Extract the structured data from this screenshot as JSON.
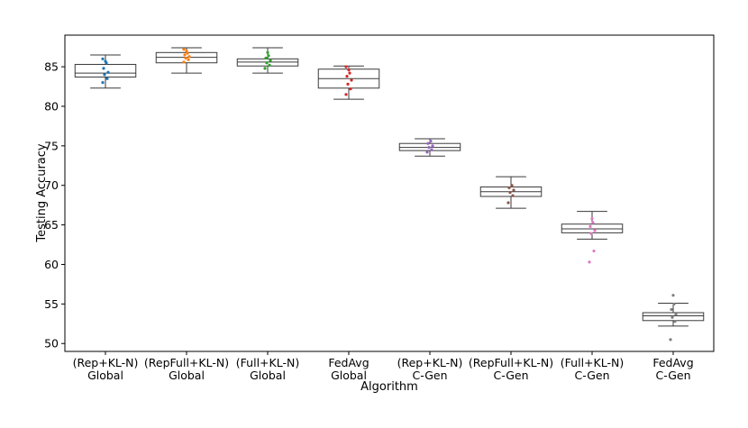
{
  "chart_data": {
    "type": "box",
    "xlabel": "Algorithm",
    "ylabel": "Testing Accuracy",
    "ylim": [
      49,
      89
    ],
    "yticks": [
      50,
      55,
      60,
      65,
      70,
      75,
      80,
      85
    ],
    "grid": false,
    "categories": [
      {
        "line1": "(Rep+KL-N)",
        "line2": "Global"
      },
      {
        "line1": "(RepFull+KL-N)",
        "line2": "Global"
      },
      {
        "line1": "(Full+KL-N)",
        "line2": "Global"
      },
      {
        "line1": "FedAvg",
        "line2": "Global"
      },
      {
        "line1": "(Rep+KL-N)",
        "line2": "C-Gen"
      },
      {
        "line1": "(RepFull+KL-N)",
        "line2": "C-Gen"
      },
      {
        "line1": "(Full+KL-N)",
        "line2": "C-Gen"
      },
      {
        "line1": "FedAvg",
        "line2": "C-Gen"
      }
    ],
    "boxes": [
      {
        "whislo": 82.3,
        "q1": 83.7,
        "med": 84.2,
        "q3": 85.3,
        "whishi": 86.5,
        "color": "#1f77b4",
        "points": [
          83.0,
          83.5,
          84.0,
          84.3,
          84.8,
          85.5,
          85.7,
          86.0
        ]
      },
      {
        "whislo": 84.2,
        "q1": 85.5,
        "med": 86.2,
        "q3": 86.8,
        "whishi": 87.4,
        "color": "#ff7f0e",
        "points": [
          85.6,
          85.9,
          86.1,
          86.3,
          86.5,
          86.7,
          87.0,
          87.2
        ]
      },
      {
        "whislo": 84.2,
        "q1": 85.1,
        "med": 85.6,
        "q3": 86.0,
        "whishi": 87.4,
        "color": "#2ca02c",
        "points": [
          84.8,
          85.2,
          85.5,
          85.8,
          86.1,
          86.4,
          86.8
        ]
      },
      {
        "whislo": 80.9,
        "q1": 82.3,
        "med": 83.5,
        "q3": 84.7,
        "whishi": 85.1,
        "color": "#d62728",
        "points": [
          81.5,
          82.2,
          82.8,
          83.3,
          83.8,
          84.2,
          84.6,
          85.0
        ]
      },
      {
        "whislo": 73.7,
        "q1": 74.4,
        "med": 74.8,
        "q3": 75.3,
        "whishi": 75.9,
        "color": "#9467bd",
        "points": [
          74.2,
          74.5,
          74.8,
          75.0,
          75.3,
          75.6
        ]
      },
      {
        "whislo": 67.1,
        "q1": 68.6,
        "med": 69.2,
        "q3": 69.8,
        "whishi": 71.1,
        "color": "#8c564b",
        "points": [
          67.8,
          68.7,
          69.1,
          69.4,
          69.7,
          70.0
        ]
      },
      {
        "whislo": 63.2,
        "q1": 64.0,
        "med": 64.5,
        "q3": 65.1,
        "whishi": 66.7,
        "color": "#e377c2",
        "points": [
          60.3,
          61.7,
          63.9,
          64.3,
          64.8,
          65.3,
          65.8
        ]
      },
      {
        "whislo": 52.2,
        "q1": 52.9,
        "med": 53.5,
        "q3": 53.9,
        "whishi": 55.1,
        "color": "#7f7f7f",
        "points": [
          50.5,
          52.8,
          53.3,
          53.7,
          54.3,
          55.0,
          56.1
        ]
      }
    ]
  }
}
